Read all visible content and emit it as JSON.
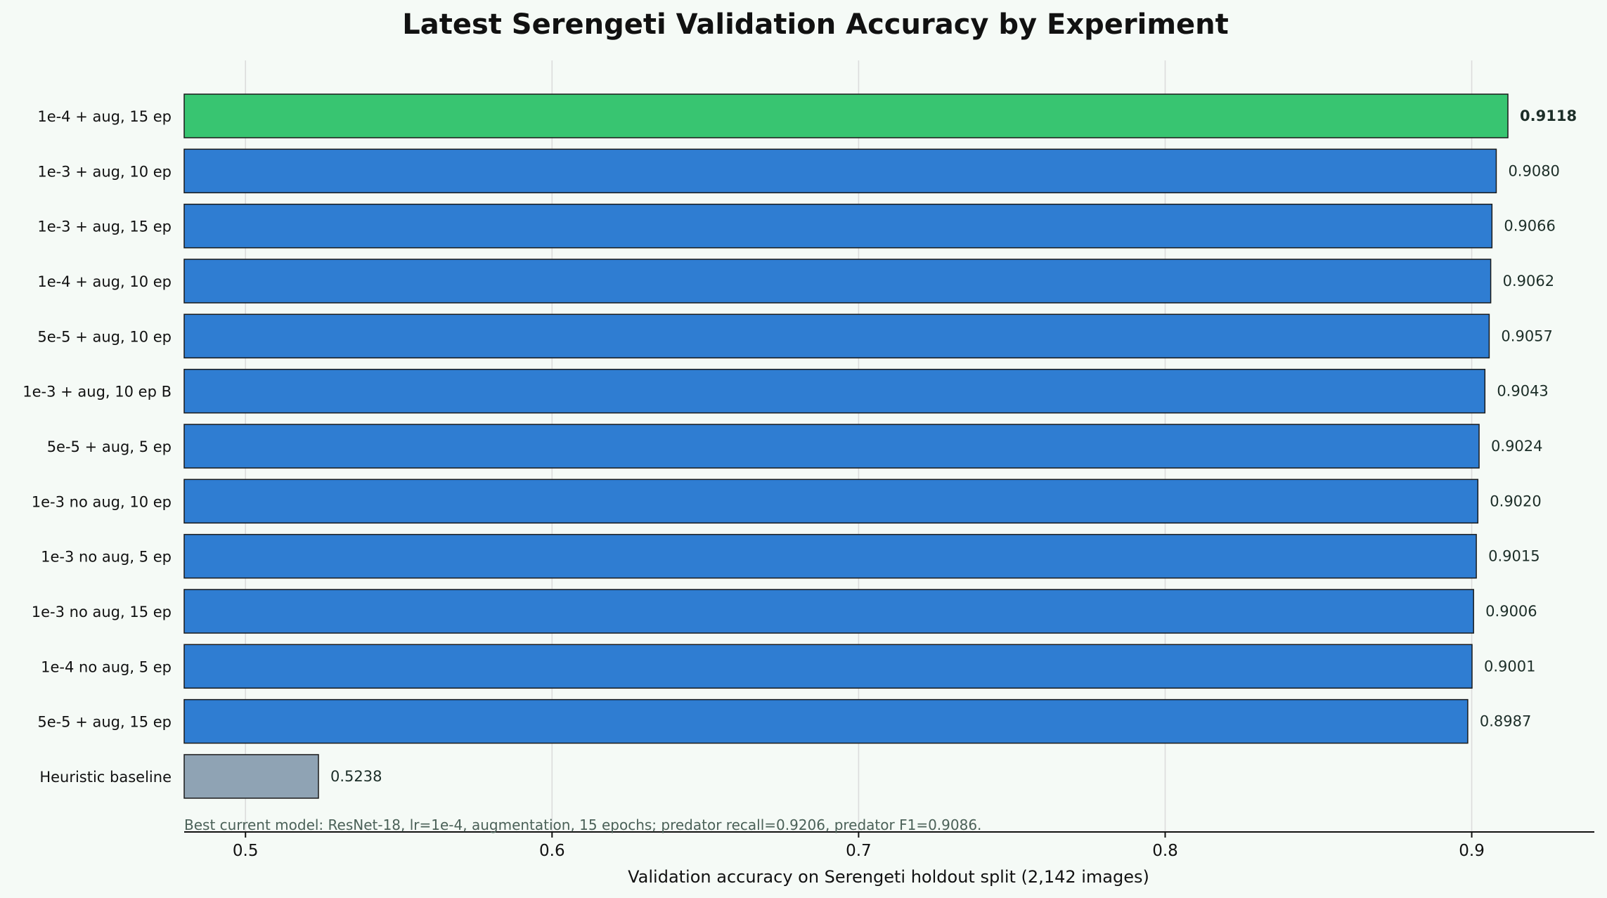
{
  "chart_data": {
    "type": "bar",
    "orientation": "horizontal",
    "title": "Latest Serengeti Validation Accuracy by Experiment",
    "xlabel": "Validation accuracy on Serengeti holdout split (2,142 images)",
    "ylabel": "",
    "xlim": [
      0.48,
      0.94
    ],
    "xticks": [
      0.5,
      0.6,
      0.7,
      0.8,
      0.9
    ],
    "xtick_labels": [
      "0.5",
      "0.6",
      "0.7",
      "0.8",
      "0.9"
    ],
    "grid": "vertical",
    "categories": [
      "1e-4 + aug, 15 ep",
      "1e-3 + aug, 10 ep",
      "1e-3 + aug, 15 ep",
      "1e-4 + aug, 10 ep",
      "5e-5 + aug, 10 ep",
      "1e-3 + aug, 10 ep B",
      "5e-5 + aug, 5 ep",
      "1e-3 no aug, 10 ep",
      "1e-3 no aug, 5 ep",
      "1e-3 no aug, 15 ep",
      "1e-4 no aug, 5 ep",
      "5e-5 + aug, 15 ep",
      "Heuristic baseline"
    ],
    "values": [
      0.9118,
      0.908,
      0.9066,
      0.9062,
      0.9057,
      0.9043,
      0.9024,
      0.902,
      0.9015,
      0.9006,
      0.9001,
      0.8987,
      0.5238
    ],
    "value_labels": [
      "0.9118",
      "0.9080",
      "0.9066",
      "0.9062",
      "0.9057",
      "0.9043",
      "0.9024",
      "0.9020",
      "0.9015",
      "0.9006",
      "0.9001",
      "0.8987",
      "0.5238"
    ],
    "bar_colors": [
      "#38c571",
      "#2f7dd2",
      "#2f7dd2",
      "#2f7dd2",
      "#2f7dd2",
      "#2f7dd2",
      "#2f7dd2",
      "#2f7dd2",
      "#2f7dd2",
      "#2f7dd2",
      "#2f7dd2",
      "#2f7dd2",
      "#8fa3b4"
    ],
    "highlight_index": 0,
    "annotation": "Best current model: ResNet-18, lr=1e-4, augmentation, 15 epochs; predator recall=0.9206, predator F1=0.9086."
  }
}
